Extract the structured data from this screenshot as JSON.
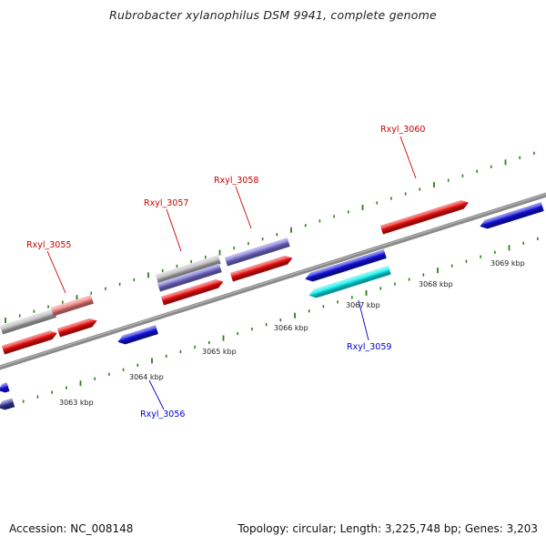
{
  "title": "Rubrobacter xylanophilus DSM 9941, complete genome",
  "footer": {
    "accession": "Accession: NC_008148",
    "stats": "Topology: circular; Length: 3,225,748 bp; Genes: 3,203"
  },
  "colors": {
    "backbone": "#8a8a8a",
    "tick": "#2e7d1f",
    "forward_label": "#cc0000",
    "reverse_label": "#0000cc",
    "red_gene": "#ee1111",
    "blue_gene": "#1111dd",
    "cyan_gene": "#11eeee",
    "lavender_gene": "#7a70d0",
    "gray_gene": "#bbbbbb",
    "pink_gene": "#ee8080",
    "navy_gene": "#333399"
  },
  "scale_labels": [
    "3063 kbp",
    "3064 kbp",
    "3065 kbp",
    "3066 kbp",
    "3067 kbp",
    "3068 kbp",
    "3069 kbp"
  ],
  "gene_labels": [
    {
      "name": "Rxyl_3055",
      "strand": "forward"
    },
    {
      "name": "Rxyl_3057",
      "strand": "forward"
    },
    {
      "name": "Rxyl_3058",
      "strand": "forward"
    },
    {
      "name": "Rxyl_3060",
      "strand": "forward"
    },
    {
      "name": "Rxyl_3056",
      "strand": "reverse"
    },
    {
      "name": "Rxyl_3059",
      "strand": "reverse"
    }
  ]
}
